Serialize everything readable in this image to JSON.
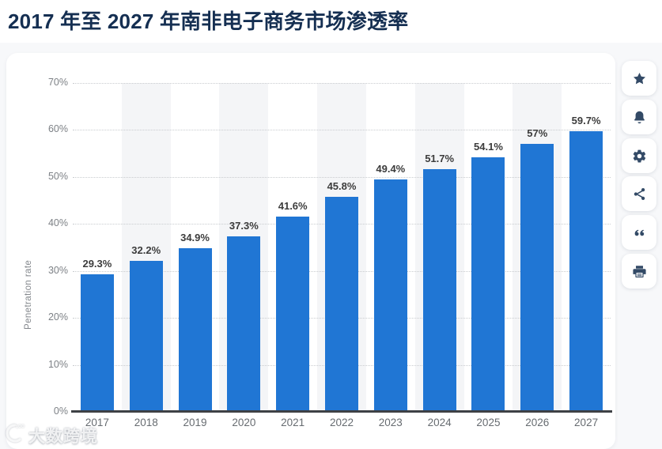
{
  "page": {
    "title": "2017 年至 2027 年南非电子商务市场渗透率"
  },
  "chart_data": {
    "type": "bar",
    "title": "2017 年至 2027 年南非电子商务市场渗透率",
    "categories": [
      "2017",
      "2018",
      "2019",
      "2020",
      "2021",
      "2022",
      "2023",
      "2024",
      "2025",
      "2026",
      "2027"
    ],
    "values": [
      29.3,
      32.2,
      34.9,
      37.3,
      41.6,
      45.8,
      49.4,
      51.7,
      54.1,
      57,
      59.7
    ],
    "value_labels": [
      "29.3%",
      "32.2%",
      "34.9%",
      "37.3%",
      "41.6%",
      "45.8%",
      "49.4%",
      "51.7%",
      "54.1%",
      "57%",
      "59.7%"
    ],
    "xlabel": "",
    "ylabel": "Penetration rate",
    "ylim": [
      0,
      70
    ],
    "ytick_step": 10,
    "yticks": [
      "0%",
      "10%",
      "20%",
      "30%",
      "40%",
      "50%",
      "60%",
      "70%"
    ],
    "grid": "horizontal-dotted",
    "legend": "none",
    "bar_color": "#2076d4",
    "stripe_color": "#f4f5f7",
    "label_color": "#3c3c3c"
  },
  "action_panel": {
    "buttons": [
      {
        "name": "favorite",
        "icon": "star-icon"
      },
      {
        "name": "alerts",
        "icon": "bell-icon"
      },
      {
        "name": "settings",
        "icon": "gear-icon"
      },
      {
        "name": "share",
        "icon": "share-icon"
      },
      {
        "name": "cite",
        "icon": "quote-icon"
      },
      {
        "name": "print",
        "icon": "printer-icon"
      }
    ]
  },
  "watermark": {
    "logo": "kua100-logo",
    "text": "大数跨境"
  }
}
